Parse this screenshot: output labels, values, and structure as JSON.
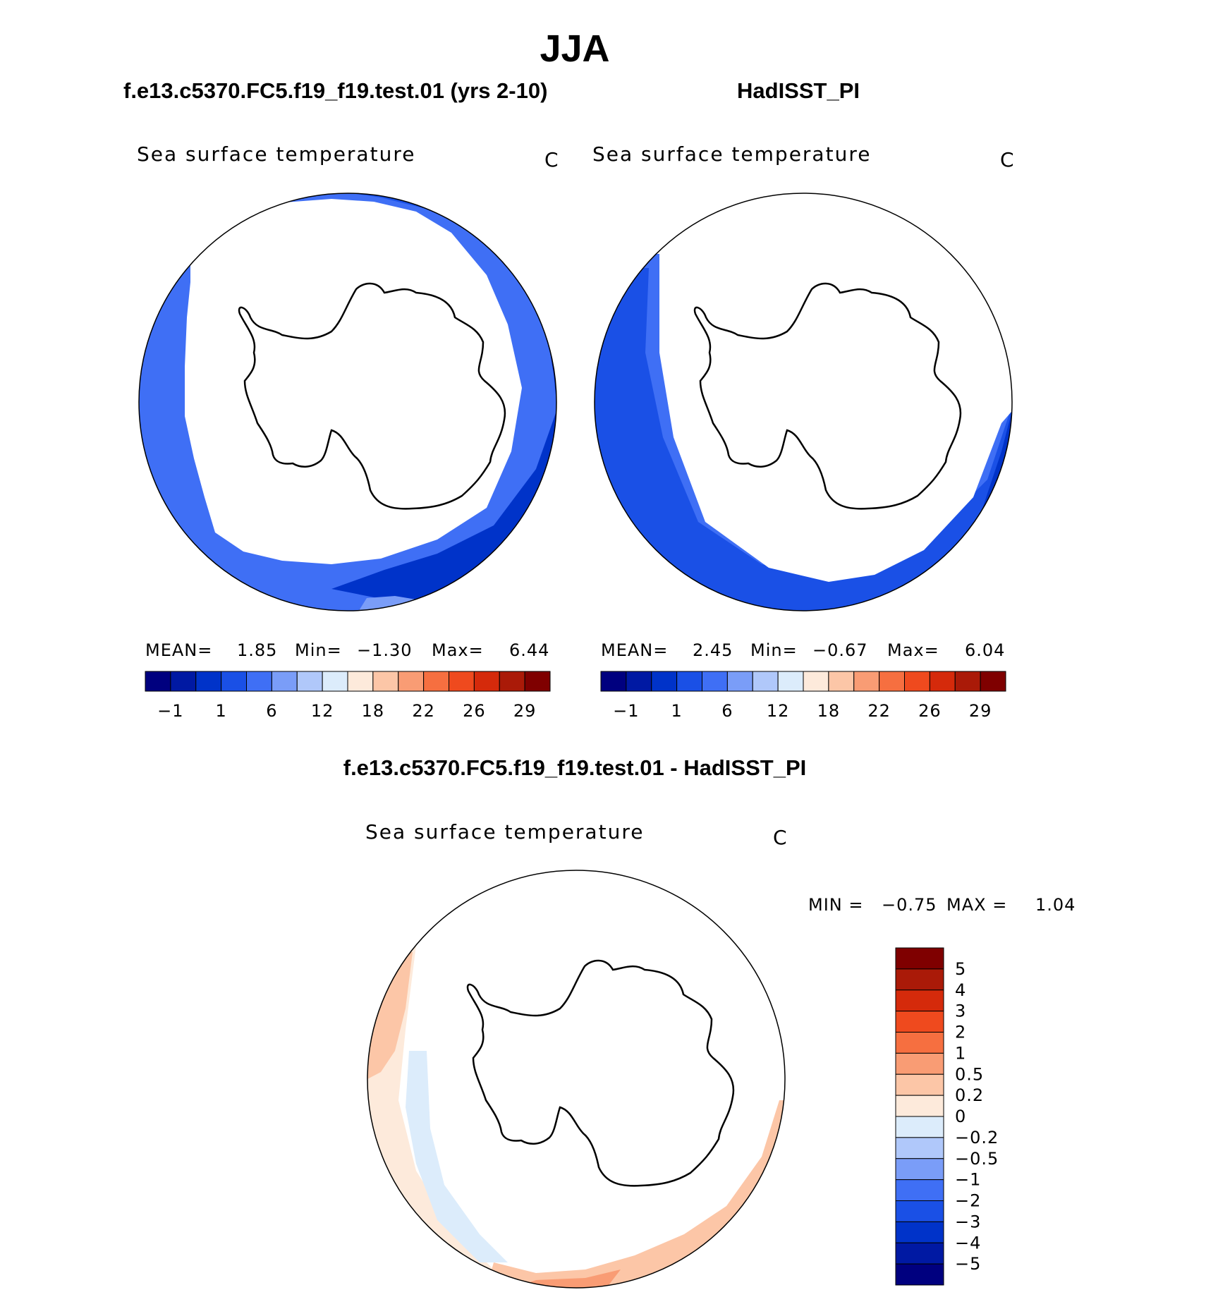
{
  "title": "JJA",
  "panels": [
    {
      "title": "f.e13.c5370.FC5.f19_f19.test.01 (yrs 2-10)",
      "variable": "Sea surface temperature",
      "units": "C",
      "stats": {
        "mean_label": "MEAN=",
        "mean": "1.85",
        "min_label": "Min=",
        "min": "−1.30",
        "max_label": "Max=",
        "max": "6.44"
      }
    },
    {
      "title": "HadISST_PI",
      "variable": "Sea surface temperature",
      "units": "C",
      "stats": {
        "mean_label": "MEAN=",
        "mean": "2.45",
        "min_label": "Min=",
        "min": "−0.67",
        "max_label": "Max=",
        "max": "6.04"
      }
    }
  ],
  "difference": {
    "title": "f.e13.c5370.FC5.f19_f19.test.01 - HadISST_PI",
    "variable": "Sea surface temperature",
    "units": "C",
    "stats": {
      "min_label": "MIN =",
      "min": "−0.75",
      "max_label": "MAX =",
      "max": "1.04"
    }
  },
  "colorbars": {
    "absolute": {
      "colors": [
        "#00007f",
        "#0019a3",
        "#0033c9",
        "#1a50e6",
        "#3f6ff5",
        "#7a9df8",
        "#b0c8fa",
        "#dcecfb",
        "#fdeadb",
        "#fcc6a7",
        "#f99c74",
        "#f66f40",
        "#ef4a1e",
        "#d52a0b",
        "#aa1a08",
        "#7f0000"
      ],
      "tick_labels": [
        "−1",
        "1",
        "6",
        "12",
        "18",
        "22",
        "26",
        "29"
      ]
    },
    "difference": {
      "colors": [
        "#00007f",
        "#0019a3",
        "#0033c9",
        "#1a50e6",
        "#3f6ff5",
        "#7a9df8",
        "#b0c8fa",
        "#dcecfb",
        "#fdeadb",
        "#fcc6a7",
        "#f99c74",
        "#f66f40",
        "#ef4a1e",
        "#d52a0b",
        "#aa1a08",
        "#7f0000"
      ],
      "tick_labels": [
        "−5",
        "−4",
        "−3",
        "−2",
        "−1",
        "−0.5",
        "−0.2",
        "0",
        "0.2",
        "0.5",
        "1",
        "2",
        "3",
        "4",
        "5"
      ]
    }
  }
}
